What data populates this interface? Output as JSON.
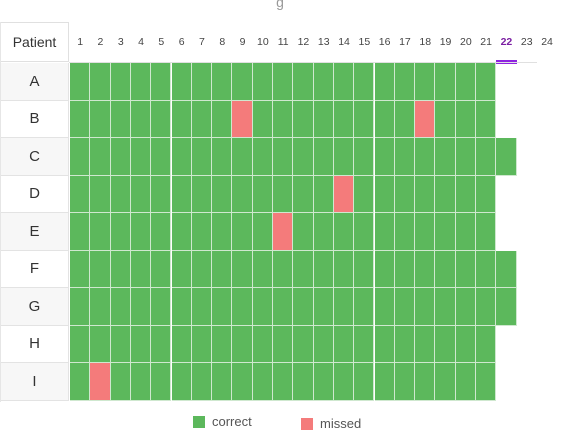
{
  "header": {
    "label": "Patient"
  },
  "days": [
    "1",
    "2",
    "3",
    "4",
    "5",
    "6",
    "7",
    "8",
    "9",
    "10",
    "11",
    "12",
    "13",
    "14",
    "15",
    "16",
    "17",
    "18",
    "19",
    "20",
    "21",
    "22",
    "23",
    "24"
  ],
  "active_day": "22",
  "patients": [
    {
      "name": "A",
      "days_recorded": 21,
      "missed": []
    },
    {
      "name": "B",
      "days_recorded": 21,
      "missed": [
        9,
        18
      ]
    },
    {
      "name": "C",
      "days_recorded": 22,
      "missed": []
    },
    {
      "name": "D",
      "days_recorded": 21,
      "missed": [
        14
      ]
    },
    {
      "name": "E",
      "days_recorded": 21,
      "missed": [
        11
      ]
    },
    {
      "name": "F",
      "days_recorded": 22,
      "missed": []
    },
    {
      "name": "G",
      "days_recorded": 22,
      "missed": []
    },
    {
      "name": "H",
      "days_recorded": 21,
      "missed": []
    },
    {
      "name": "I",
      "days_recorded": 21,
      "missed": [
        2
      ]
    }
  ],
  "legend": {
    "correct_label": "correct",
    "missed_label": "missed"
  },
  "colors": {
    "correct": "#5cb85c",
    "missed": "#f47b7b",
    "active_day": "#8e24e0"
  }
}
